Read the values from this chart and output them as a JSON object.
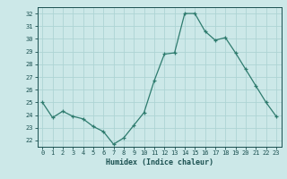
{
  "xlabel": "Humidex (Indice chaleur)",
  "ylabel": "",
  "x": [
    0,
    1,
    2,
    3,
    4,
    5,
    6,
    7,
    8,
    9,
    10,
    11,
    12,
    13,
    14,
    15,
    16,
    17,
    18,
    19,
    20,
    21,
    22,
    23
  ],
  "y": [
    25.0,
    23.8,
    24.3,
    23.9,
    23.7,
    23.1,
    22.7,
    21.7,
    22.2,
    23.2,
    24.2,
    26.7,
    28.8,
    28.9,
    32.0,
    32.0,
    30.6,
    29.9,
    30.1,
    28.9,
    27.6,
    26.3,
    25.0,
    23.9
  ],
  "ylim": [
    21.5,
    32.5
  ],
  "yticks": [
    22,
    23,
    24,
    25,
    26,
    27,
    28,
    29,
    30,
    31,
    32
  ],
  "xticks": [
    0,
    1,
    2,
    3,
    4,
    5,
    6,
    7,
    8,
    9,
    10,
    11,
    12,
    13,
    14,
    15,
    16,
    17,
    18,
    19,
    20,
    21,
    22,
    23
  ],
  "line_color": "#2e7b6e",
  "marker": "+",
  "bg_color": "#cce8e8",
  "grid_color": "#aed4d4",
  "tick_color": "#1a5050",
  "label_color": "#1a5050"
}
